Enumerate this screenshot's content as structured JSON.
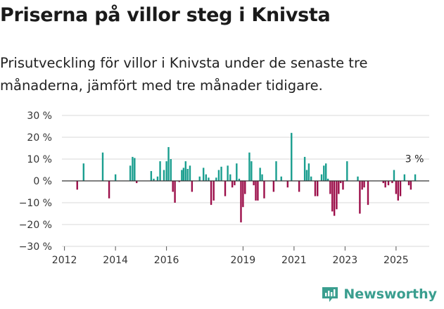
{
  "header": {
    "title": "Priserna på villor steg i Knivsta",
    "subtitle": "Prisutveckling för villor i Knivsta under de senaste tre månaderna, jämfört med tre månader tidigare."
  },
  "brand": {
    "name": "Newsworthy"
  },
  "colors": {
    "positive": "#1a9e8f",
    "negative": "#9c0f4a",
    "grid": "#d9d9d9",
    "axis": "#333333",
    "brand": "#3a9e8f"
  },
  "chart_data": {
    "type": "bar",
    "title": "Priserna på villor steg i Knivsta",
    "subtitle": "Prisutveckling för villor i Knivsta under de senaste tre månaderna, jämfört med tre månader tidigare.",
    "ylabel": "",
    "xlabel": "",
    "ylim": [
      -30,
      30
    ],
    "yticks": [
      30,
      20,
      10,
      0,
      -10,
      -20,
      -30
    ],
    "ytick_labels": [
      "30 %",
      "20 %",
      "10 %",
      "0 %",
      "−10 %",
      "−20 %",
      "−30 %"
    ],
    "xlim": [
      2011.9,
      2026.3
    ],
    "xticks": [
      2012,
      2014,
      2016,
      2019,
      2021,
      2023,
      2025
    ],
    "xtick_labels": [
      "2012",
      "2014",
      "2016",
      "2019",
      "2021",
      "2023",
      "2025"
    ],
    "annotation": {
      "text": "3 %",
      "x": 2025.75
    },
    "x": [
      2012.5,
      2012.75,
      2013.5,
      2013.75,
      2014.0,
      2014.58,
      2014.67,
      2014.75,
      2014.83,
      2015.4,
      2015.5,
      2015.65,
      2015.75,
      2015.9,
      2016.0,
      2016.08,
      2016.17,
      2016.25,
      2016.33,
      2016.5,
      2016.6,
      2016.67,
      2016.75,
      2016.83,
      2016.92,
      2017.0,
      2017.3,
      2017.45,
      2017.55,
      2017.65,
      2017.75,
      2017.85,
      2017.95,
      2018.05,
      2018.15,
      2018.3,
      2018.4,
      2018.5,
      2018.58,
      2018.67,
      2018.75,
      2018.85,
      2018.92,
      2019.0,
      2019.08,
      2019.25,
      2019.33,
      2019.42,
      2019.5,
      2019.58,
      2019.67,
      2019.75,
      2019.83,
      2020.2,
      2020.3,
      2020.5,
      2020.75,
      2020.9,
      2021.2,
      2021.42,
      2021.5,
      2021.58,
      2021.67,
      2021.83,
      2021.92,
      2022.08,
      2022.17,
      2022.25,
      2022.33,
      2022.42,
      2022.5,
      2022.58,
      2022.67,
      2022.75,
      2022.83,
      2022.92,
      2023.08,
      2023.5,
      2023.58,
      2023.67,
      2023.75,
      2023.9,
      2024.5,
      2024.58,
      2024.7,
      2024.85,
      2024.92,
      2025.0,
      2025.08,
      2025.17,
      2025.33,
      2025.5,
      2025.58,
      2025.75
    ],
    "values": [
      -4,
      8,
      13,
      -8,
      3,
      7,
      11,
      10.5,
      -1,
      4.5,
      1,
      2,
      9,
      5,
      9,
      15.5,
      10,
      -5,
      -10,
      -0.5,
      5,
      6,
      9,
      5.5,
      7,
      -5,
      2,
      6,
      3,
      1.5,
      -11,
      -9,
      1.5,
      5,
      6.5,
      -7,
      7,
      3,
      -3,
      -2,
      8,
      1,
      -19,
      -12,
      -6,
      13,
      9,
      -2,
      -9,
      -9,
      6,
      3,
      -8,
      -5,
      9,
      2,
      -3,
      22,
      -5,
      11,
      5,
      8,
      2,
      -7,
      -7,
      3,
      7,
      8,
      1,
      -6,
      -14,
      -16,
      -13,
      -6,
      -1,
      -4,
      9,
      2,
      -15,
      -4,
      -3,
      -11,
      -1,
      -3,
      -2,
      -1,
      5,
      -6,
      -9,
      -7,
      3,
      -2,
      -4,
      3
    ]
  }
}
